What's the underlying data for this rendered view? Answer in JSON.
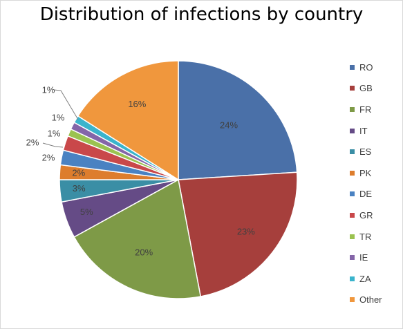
{
  "chart_data": {
    "type": "pie",
    "title": "Distribution of infections by country",
    "legend_position": "right",
    "slices": [
      {
        "label": "RO",
        "value": 24,
        "display": "24%",
        "color": "#4a70a8"
      },
      {
        "label": "GB",
        "value": 23,
        "display": "23%",
        "color": "#a63f3c"
      },
      {
        "label": "FR",
        "value": 20,
        "display": "20%",
        "color": "#7e9a47"
      },
      {
        "label": "IT",
        "value": 5,
        "display": "5%",
        "color": "#654b86"
      },
      {
        "label": "ES",
        "value": 3,
        "display": "3%",
        "color": "#3a8ea5"
      },
      {
        "label": "PK",
        "value": 2,
        "display": "2%",
        "color": "#dd7d2d"
      },
      {
        "label": "DE",
        "value": 2,
        "display": "2%",
        "color": "#4a82c2"
      },
      {
        "label": "GR",
        "value": 2,
        "display": "2%",
        "color": "#c9484a"
      },
      {
        "label": "TR",
        "value": 1,
        "display": "1%",
        "color": "#9bc250"
      },
      {
        "label": "IE",
        "value": 1,
        "display": "1%",
        "color": "#8465a8"
      },
      {
        "label": "ZA",
        "value": 1,
        "display": "1%",
        "color": "#3ab4cc"
      },
      {
        "label": "Other",
        "value": 16,
        "display": "16%",
        "color": "#f0973d"
      }
    ]
  }
}
